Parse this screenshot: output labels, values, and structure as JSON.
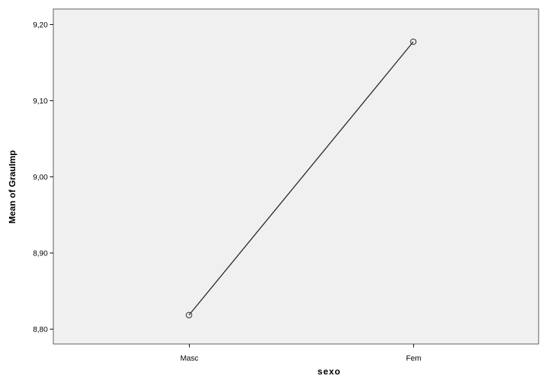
{
  "chart_data": {
    "type": "line",
    "categories": [
      "Masc",
      "Fem"
    ],
    "series": [
      {
        "values": [
          8.818,
          9.177
        ],
        "marker": "circle"
      }
    ],
    "xlabel": "sexo",
    "ylabel": "Mean of GrauImp",
    "ylim": [
      8.78,
      9.22
    ],
    "yticks": [
      8.8,
      8.9,
      9.0,
      9.1,
      9.2
    ],
    "ytick_labels": [
      "8,80",
      "8,90",
      "9,00",
      "9,10",
      "9,20"
    ],
    "grid": false,
    "colors": {
      "plot_background": "#f0f0f0",
      "line": "#333333",
      "frame": "#555555"
    }
  }
}
